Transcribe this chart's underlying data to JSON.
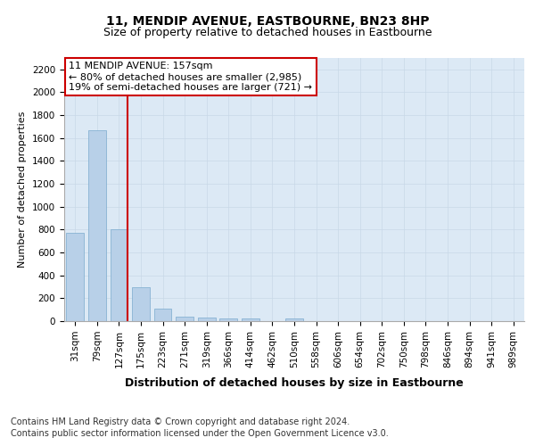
{
  "title": "11, MENDIP AVENUE, EASTBOURNE, BN23 8HP",
  "subtitle": "Size of property relative to detached houses in Eastbourne",
  "xlabel": "Distribution of detached houses by size in Eastbourne",
  "ylabel": "Number of detached properties",
  "categories": [
    "31sqm",
    "79sqm",
    "127sqm",
    "175sqm",
    "223sqm",
    "271sqm",
    "319sqm",
    "366sqm",
    "414sqm",
    "462sqm",
    "510sqm",
    "558sqm",
    "606sqm",
    "654sqm",
    "702sqm",
    "750sqm",
    "798sqm",
    "846sqm",
    "894sqm",
    "941sqm",
    "989sqm"
  ],
  "values": [
    770,
    1670,
    800,
    300,
    110,
    40,
    35,
    25,
    25,
    0,
    25,
    0,
    0,
    0,
    0,
    0,
    0,
    0,
    0,
    0,
    0
  ],
  "bar_color": "#b8d0e8",
  "bar_edge_color": "#7aaace",
  "vline_x_index": 2,
  "vline_color": "#cc0000",
  "annotation_line1": "11 MENDIP AVENUE: 157sqm",
  "annotation_line2": "← 80% of detached houses are smaller (2,985)",
  "annotation_line3": "19% of semi-detached houses are larger (721) →",
  "annotation_box_color": "#ffffff",
  "annotation_box_edge": "#cc0000",
  "ylim": [
    0,
    2300
  ],
  "yticks": [
    0,
    200,
    400,
    600,
    800,
    1000,
    1200,
    1400,
    1600,
    1800,
    2000,
    2200
  ],
  "grid_color": "#c8d8e8",
  "background_color": "#dce9f5",
  "footer_line1": "Contains HM Land Registry data © Crown copyright and database right 2024.",
  "footer_line2": "Contains public sector information licensed under the Open Government Licence v3.0.",
  "title_fontsize": 10,
  "subtitle_fontsize": 9,
  "xlabel_fontsize": 9,
  "ylabel_fontsize": 8,
  "tick_fontsize": 7.5,
  "footer_fontsize": 7,
  "annot_fontsize": 8
}
